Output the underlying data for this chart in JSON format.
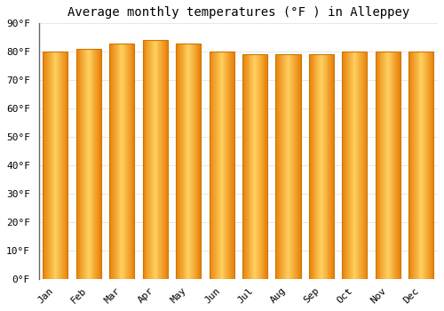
{
  "title": "Average monthly temperatures (°F ) in Alleppey",
  "months": [
    "Jan",
    "Feb",
    "Mar",
    "Apr",
    "May",
    "Jun",
    "Jul",
    "Aug",
    "Sep",
    "Oct",
    "Nov",
    "Dec"
  ],
  "values": [
    80,
    81,
    83,
    84,
    83,
    80,
    79,
    79,
    79,
    80,
    80,
    80
  ],
  "bar_color_center": "#FFD060",
  "bar_color_edge": "#E8820A",
  "bar_color_outline": "#CC7700",
  "ylim": [
    0,
    90
  ],
  "background_color": "#FFFFFF",
  "grid_color": "#DDDDDD",
  "title_fontsize": 10,
  "tick_fontsize": 8,
  "bar_width": 0.75,
  "figsize": [
    5.0,
    3.5
  ],
  "dpi": 100
}
